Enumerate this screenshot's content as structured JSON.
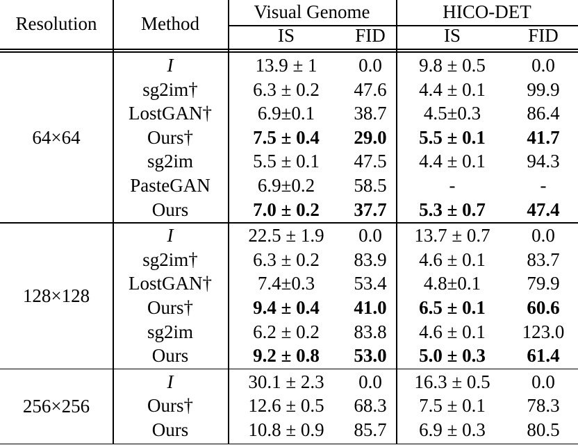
{
  "header": {
    "resolution": "Resolution",
    "method": "Method",
    "vg": "Visual Genome",
    "hico": "HICO-DET",
    "is1": "IS",
    "fid1": "FID",
    "is2": "IS",
    "fid2": "FID"
  },
  "groups": [
    {
      "resolution": "64×64",
      "rows": [
        {
          "method": "I",
          "italic": true,
          "vg_is": "13.9 ± 1",
          "vg_fid": "0.0",
          "hico_is": "9.8 ± 0.5",
          "hico_fid": "0.0",
          "bold": false
        },
        {
          "method": "sg2im†",
          "vg_is": "6.3 ± 0.2",
          "vg_fid": "47.6",
          "hico_is": "4.4 ± 0.1",
          "hico_fid": "99.9",
          "bold": false
        },
        {
          "method": "LostGAN†",
          "vg_is": "6.9±0.1",
          "vg_fid": "38.7",
          "hico_is": "4.5±0.3",
          "hico_fid": "86.4",
          "bold": false
        },
        {
          "method": "Ours†",
          "vg_is": "7.5 ± 0.4",
          "vg_fid": "29.0",
          "hico_is": "5.5 ± 0.1",
          "hico_fid": "41.7",
          "bold": true
        },
        {
          "method": "sg2im",
          "vg_is": "5.5 ± 0.1",
          "vg_fid": "47.5",
          "hico_is": "4.4 ± 0.1",
          "hico_fid": "94.3",
          "bold": false
        },
        {
          "method": "PasteGAN",
          "vg_is": "6.9±0.2",
          "vg_fid": "58.5",
          "hico_is": "-",
          "hico_fid": "-",
          "bold": false
        },
        {
          "method": "Ours",
          "vg_is": "7.0 ± 0.2",
          "vg_fid": "37.7",
          "hico_is": "5.3 ± 0.7",
          "hico_fid": "47.4",
          "bold": true
        }
      ]
    },
    {
      "resolution": "128×128",
      "rows": [
        {
          "method": "I",
          "italic": true,
          "vg_is": "22.5 ± 1.9",
          "vg_fid": "0.0",
          "hico_is": "13.7 ± 0.7",
          "hico_fid": "0.0",
          "bold": false
        },
        {
          "method": "sg2im†",
          "vg_is": "6.3 ± 0.2",
          "vg_fid": "83.9",
          "hico_is": "4.6 ± 0.1",
          "hico_fid": "83.7",
          "bold": false
        },
        {
          "method": "LostGAN†",
          "vg_is": "7.4±0.3",
          "vg_fid": "53.4",
          "hico_is": "4.8±0.1",
          "hico_fid": "79.9",
          "bold": false
        },
        {
          "method": "Ours†",
          "vg_is": "9.4 ± 0.4",
          "vg_fid": "41.0",
          "hico_is": "6.5 ± 0.1",
          "hico_fid": "60.6",
          "bold": true
        },
        {
          "method": "sg2im",
          "vg_is": "6.2 ± 0.2",
          "vg_fid": "83.8",
          "hico_is": "4.6 ± 0.1",
          "hico_fid": "123.0",
          "bold": false
        },
        {
          "method": "Ours",
          "vg_is": "9.2 ± 0.8",
          "vg_fid": "53.0",
          "hico_is": "5.0 ± 0.3",
          "hico_fid": "61.4",
          "bold": true
        }
      ]
    },
    {
      "resolution": "256×256",
      "rows": [
        {
          "method": "I",
          "italic": true,
          "vg_is": "30.1 ± 2.3",
          "vg_fid": "0.0",
          "hico_is": "16.3 ± 0.5",
          "hico_fid": "0.0",
          "bold": false
        },
        {
          "method": "Ours†",
          "vg_is": "12.6 ± 0.5",
          "vg_fid": "68.3",
          "hico_is": "7.5 ± 0.1",
          "hico_fid": "78.3",
          "bold": false
        },
        {
          "method": "Ours",
          "vg_is": "10.8 ± 0.9",
          "vg_fid": "85.7",
          "hico_is": "6.9 ± 0.3",
          "hico_fid": "80.5",
          "bold": false
        }
      ]
    }
  ]
}
